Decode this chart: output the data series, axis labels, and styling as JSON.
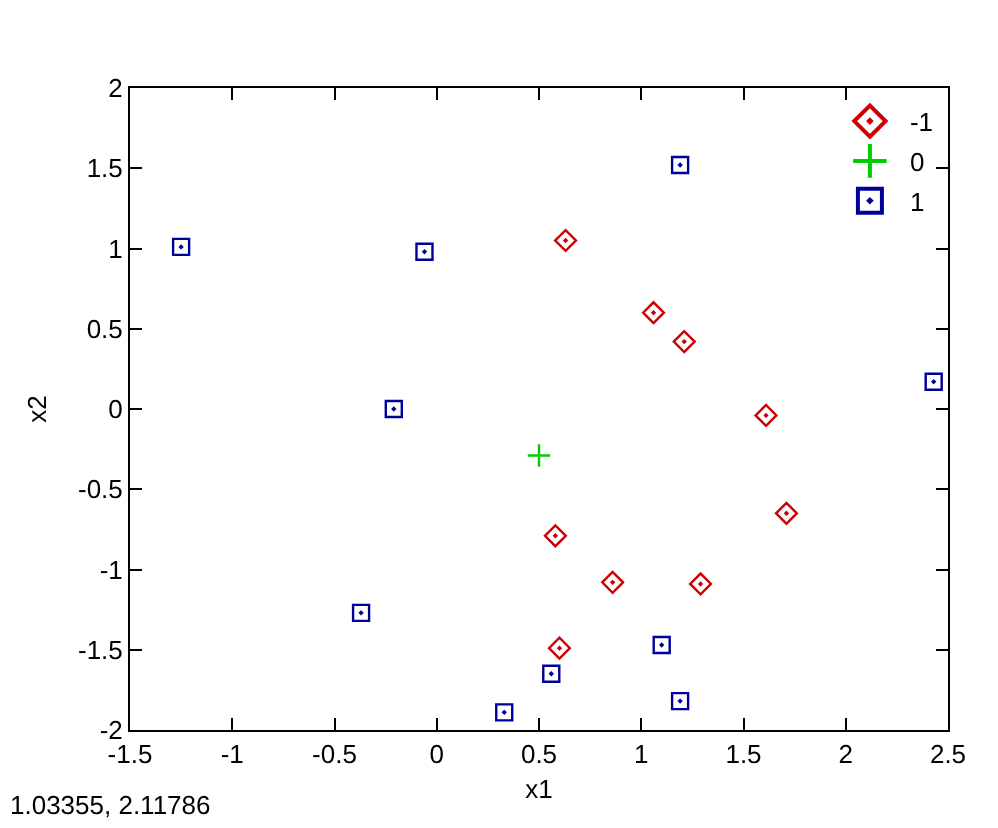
{
  "chart_data": {
    "type": "scatter",
    "xlabel": "x1",
    "ylabel": "x2",
    "annotations": [
      "1.03355, 2.11786"
    ],
    "series": [
      {
        "name": "-1",
        "color": "#cc0000",
        "marker": "diamond",
        "x": [
          0.63,
          1.06,
          1.21,
          1.61,
          1.71,
          0.58,
          0.86,
          1.29,
          0.6
        ],
        "values": [
          1.05,
          0.6,
          0.42,
          -0.04,
          -0.65,
          -0.79,
          -1.08,
          -1.09,
          -1.49
        ]
      },
      {
        "name": "0",
        "color": "#00cc00",
        "marker": "cross",
        "x": [
          0.5
        ],
        "values": [
          -0.29
        ]
      },
      {
        "name": "1",
        "color": "#000099",
        "marker": "square",
        "x": [
          -1.25,
          -0.06,
          -0.21,
          1.19,
          2.43,
          -0.37,
          0.33,
          0.56,
          1.1,
          1.19
        ],
        "values": [
          1.01,
          0.98,
          0.0,
          1.52,
          0.17,
          -1.27,
          -1.89,
          -1.65,
          -1.47,
          -1.82
        ]
      }
    ],
    "xlim": [
      -1.5,
      2.5
    ],
    "ylim": [
      -2,
      2
    ],
    "xticks": [
      -1.5,
      -1,
      -0.5,
      0,
      0.5,
      1,
      1.5,
      2,
      2.5
    ],
    "yticks": [
      -2,
      -1.5,
      -1,
      -0.5,
      0,
      0.5,
      1,
      1.5,
      2
    ],
    "grid": false,
    "legend": "top right"
  }
}
